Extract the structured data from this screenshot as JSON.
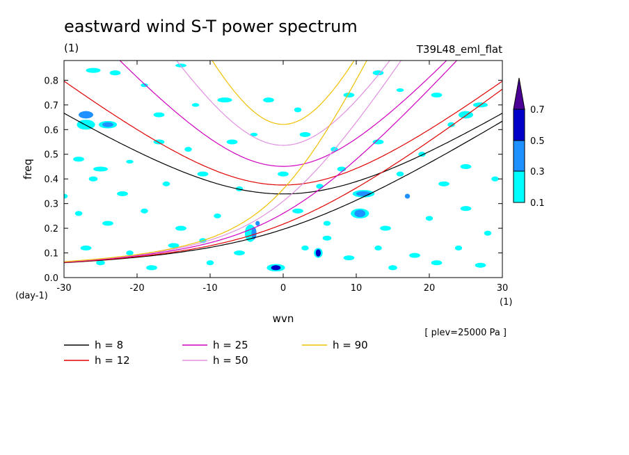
{
  "header": {
    "title": "eastward wind S-T power spectrum",
    "subtitle": "(1)",
    "experiment": "T39L48_eml_flat",
    "level_note": "[ plev=25000 Pa ]"
  },
  "chart_data": {
    "type": "heatmap",
    "title": "eastward wind S-T power spectrum",
    "xlabel": "wvn",
    "ylabel": "freq",
    "x_unit": "(1)",
    "y_unit": "(day-1)",
    "xlim": [
      -30,
      30
    ],
    "ylim": [
      0,
      0.88
    ],
    "xticks": [
      -30,
      -20,
      -10,
      0,
      10,
      20,
      30
    ],
    "xtick_labels": [
      "-30",
      "-20",
      "-10",
      "0",
      "10",
      "20",
      "30"
    ],
    "yticks": [
      0,
      0.1,
      0.2,
      0.3,
      0.4,
      0.5,
      0.6,
      0.7,
      0.8
    ],
    "ytick_labels": [
      "0.0",
      "0.1",
      "0.2",
      "0.3",
      "0.4",
      "0.5",
      "0.6",
      "0.7",
      "0.8"
    ],
    "colorbar": {
      "levels": [
        "0.1",
        "0.3",
        "0.5",
        "0.7"
      ],
      "colors": [
        "#00ffff",
        "#1e90ff",
        "#0000c8",
        "#4b0096"
      ]
    },
    "patches": [
      [
        -27,
        0.66,
        2,
        0.03,
        1
      ],
      [
        -24,
        0.62,
        1.5,
        0.02,
        1
      ],
      [
        -4.0,
        0.18,
        0.7,
        0.05,
        1
      ],
      [
        -3.5,
        0.22,
        0.6,
        0.02,
        1
      ],
      [
        -1,
        0.04,
        1.3,
        0.02,
        2
      ],
      [
        4.8,
        0.1,
        0.7,
        0.03,
        2
      ],
      [
        11,
        0.34,
        2.0,
        0.02,
        1
      ],
      [
        10.5,
        0.26,
        1.5,
        0.03,
        1
      ],
      [
        17,
        0.33,
        0.7,
        0.02,
        1
      ],
      [
        -26,
        0.84,
        2,
        0.02,
        0
      ],
      [
        -23,
        0.83,
        1.5,
        0.02,
        0
      ],
      [
        -19,
        0.78,
        1,
        0.015,
        0
      ],
      [
        -14,
        0.86,
        1.5,
        0.015,
        0
      ],
      [
        -27,
        0.62,
        2.5,
        0.04,
        0
      ],
      [
        -24,
        0.62,
        2.5,
        0.03,
        0
      ],
      [
        -17,
        0.66,
        1.5,
        0.02,
        0
      ],
      [
        -12,
        0.7,
        1,
        0.015,
        0
      ],
      [
        -8,
        0.72,
        2,
        0.02,
        0
      ],
      [
        -2,
        0.72,
        1.5,
        0.02,
        0
      ],
      [
        2,
        0.68,
        1,
        0.02,
        0
      ],
      [
        9,
        0.74,
        1.5,
        0.02,
        0
      ],
      [
        13,
        0.83,
        1.5,
        0.02,
        0
      ],
      [
        16,
        0.76,
        1,
        0.015,
        0
      ],
      [
        21,
        0.74,
        1.5,
        0.02,
        0
      ],
      [
        25,
        0.66,
        2,
        0.03,
        0
      ],
      [
        27,
        0.7,
        2,
        0.02,
        0
      ],
      [
        23,
        0.62,
        1,
        0.02,
        0
      ],
      [
        -28,
        0.48,
        1.5,
        0.02,
        0
      ],
      [
        -25,
        0.44,
        2,
        0.02,
        0
      ],
      [
        -21,
        0.47,
        1,
        0.015,
        0
      ],
      [
        -17,
        0.55,
        1.5,
        0.02,
        0
      ],
      [
        -13,
        0.52,
        1,
        0.02,
        0
      ],
      [
        -7,
        0.55,
        1.5,
        0.02,
        0
      ],
      [
        -4,
        0.58,
        1,
        0.015,
        0
      ],
      [
        3,
        0.58,
        1.5,
        0.02,
        0
      ],
      [
        7,
        0.52,
        1,
        0.02,
        0
      ],
      [
        13,
        0.55,
        1.5,
        0.02,
        0
      ],
      [
        19,
        0.5,
        1,
        0.02,
        0
      ],
      [
        25,
        0.45,
        1.5,
        0.02,
        0
      ],
      [
        -26,
        0.4,
        1.2,
        0.02,
        0
      ],
      [
        -22,
        0.34,
        1.5,
        0.02,
        0
      ],
      [
        -16,
        0.38,
        1,
        0.02,
        0
      ],
      [
        -11,
        0.42,
        1.5,
        0.02,
        0
      ],
      [
        -6,
        0.36,
        1,
        0.02,
        0
      ],
      [
        0,
        0.42,
        1.5,
        0.02,
        0
      ],
      [
        5,
        0.37,
        1,
        0.02,
        0
      ],
      [
        8,
        0.44,
        1.2,
        0.02,
        0
      ],
      [
        16,
        0.42,
        1,
        0.02,
        0
      ],
      [
        22,
        0.38,
        1.5,
        0.02,
        0
      ],
      [
        -28,
        0.26,
        1,
        0.02,
        0
      ],
      [
        -24,
        0.22,
        1.5,
        0.02,
        0
      ],
      [
        -19,
        0.27,
        1,
        0.02,
        0
      ],
      [
        -14,
        0.2,
        1.5,
        0.02,
        0
      ],
      [
        -9,
        0.25,
        1,
        0.02,
        0
      ],
      [
        2,
        0.27,
        1.5,
        0.02,
        0
      ],
      [
        6,
        0.22,
        1,
        0.02,
        0
      ],
      [
        14,
        0.2,
        1.5,
        0.02,
        0
      ],
      [
        20,
        0.24,
        1,
        0.02,
        0
      ],
      [
        25,
        0.28,
        1.5,
        0.02,
        0
      ],
      [
        -27,
        0.12,
        1.5,
        0.02,
        0
      ],
      [
        -21,
        0.1,
        1,
        0.02,
        0
      ],
      [
        -15,
        0.13,
        1.5,
        0.02,
        0
      ],
      [
        -10,
        0.06,
        1,
        0.02,
        0
      ],
      [
        -6,
        0.1,
        1.5,
        0.02,
        0
      ],
      [
        3,
        0.12,
        1,
        0.02,
        0
      ],
      [
        9,
        0.08,
        1.5,
        0.02,
        0
      ],
      [
        13,
        0.12,
        1,
        0.02,
        0
      ],
      [
        18,
        0.09,
        1.5,
        0.02,
        0
      ],
      [
        24,
        0.12,
        1,
        0.02,
        0
      ],
      [
        27,
        0.05,
        1.5,
        0.02,
        0
      ],
      [
        -1,
        0.04,
        2.5,
        0.03,
        0
      ],
      [
        4.8,
        0.1,
        1.2,
        0.04,
        0
      ],
      [
        -4.5,
        0.18,
        1.5,
        0.07,
        0
      ],
      [
        11,
        0.34,
        3.0,
        0.03,
        0
      ],
      [
        10.5,
        0.26,
        2.5,
        0.04,
        0
      ],
      [
        -25,
        0.06,
        1.2,
        0.02,
        0
      ],
      [
        -18,
        0.04,
        1.5,
        0.02,
        0
      ],
      [
        15,
        0.04,
        1.2,
        0.02,
        0
      ],
      [
        21,
        0.06,
        1.5,
        0.02,
        0
      ],
      [
        -11,
        0.15,
        1,
        0.02,
        0
      ],
      [
        6,
        0.16,
        1.2,
        0.02,
        0
      ],
      [
        28,
        0.18,
        1,
        0.02,
        0
      ],
      [
        -30,
        0.33,
        1,
        0.02,
        0
      ],
      [
        29,
        0.4,
        1,
        0.02,
        0
      ]
    ],
    "series": [
      {
        "name": "h =  8",
        "h": 8,
        "color": "#000000"
      },
      {
        "name": "h = 12",
        "h": 12,
        "color": "#e00000"
      },
      {
        "name": "h = 25",
        "h": 25,
        "color": "#d000c0"
      },
      {
        "name": "h = 50",
        "h": 50,
        "color": "#e090e0"
      },
      {
        "name": "h = 90",
        "h": 90,
        "color": "#f0c000"
      }
    ]
  }
}
